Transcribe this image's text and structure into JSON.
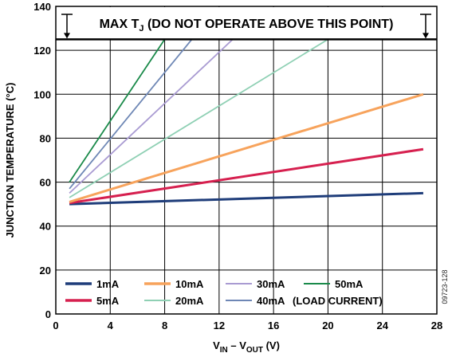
{
  "chart_data": {
    "type": "line",
    "xlabel": {
      "main": "V",
      "sub1": "IN",
      "mid": " – V",
      "sub2": "OUT",
      "unit": " (V)"
    },
    "ylabel": "JUNCTION TEMPERATURE (°C)",
    "xlim": [
      0,
      28
    ],
    "ylim": [
      0,
      140
    ],
    "xticks": [
      0,
      4,
      8,
      12,
      16,
      20,
      24,
      28
    ],
    "yticks": [
      0,
      20,
      40,
      60,
      80,
      100,
      120,
      140
    ],
    "grid": true,
    "annotation": {
      "text_main": "MAX T",
      "text_sub": "J",
      "text_rest": " (DO NOT OPERATE ABOVE THIS POINT)",
      "y": 125
    },
    "legend": {
      "placement": "bottom",
      "note": "(LOAD CURRENT)"
    },
    "series": [
      {
        "name": "1mA",
        "color": "#1f3d7a",
        "x": [
          1,
          27
        ],
        "y": [
          50,
          55
        ]
      },
      {
        "name": "5mA",
        "color": "#d6204f",
        "x": [
          1,
          27
        ],
        "y": [
          50.5,
          75
        ]
      },
      {
        "name": "10mA",
        "color": "#f7a35c",
        "x": [
          1,
          27
        ],
        "y": [
          51,
          100
        ]
      },
      {
        "name": "20mA",
        "color": "#8fd0b4",
        "x": [
          1,
          20
        ],
        "y": [
          53,
          125
        ]
      },
      {
        "name": "30mA",
        "color": "#a99bd2",
        "x": [
          1,
          13
        ],
        "y": [
          55,
          125
        ]
      },
      {
        "name": "40mA",
        "color": "#6e87b5",
        "x": [
          1,
          10
        ],
        "y": [
          57,
          125
        ]
      },
      {
        "name": "50mA",
        "color": "#1a8a4a",
        "x": [
          1,
          8
        ],
        "y": [
          60,
          125
        ]
      }
    ],
    "figure_id": "09723-128"
  }
}
